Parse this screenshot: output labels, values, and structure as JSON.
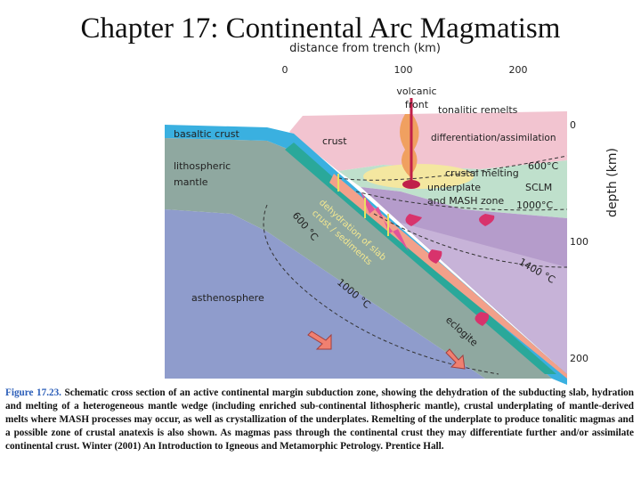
{
  "title": "Chapter 17: Continental Arc Magmatism",
  "axes": {
    "top": {
      "label": "distance from trench (km)",
      "ticks": [
        "0",
        "100",
        "200"
      ]
    },
    "right": {
      "label": "depth (km)",
      "ticks": [
        "0",
        "100",
        "200"
      ]
    }
  },
  "labels": {
    "volcanic_front": [
      "volcanic",
      "front"
    ],
    "tonalitic_remelts": "tonalitic remelts",
    "basaltic_crust": "basaltic crust",
    "crust": "crust",
    "differentiation": "differentiation/assimilation",
    "lithospheric_mantle": [
      "lithospheric",
      "mantle"
    ],
    "crustal_melting": "crustal melting",
    "t600_right": "600°C",
    "underplate": [
      "underplate",
      "and MASH zone"
    ],
    "sclm": "SCLM",
    "t1000_right": "1000°C",
    "dehydration": [
      "dehydration of slab",
      "crust / sediments"
    ],
    "t600_slab": "600 °C",
    "t1400": "1400 °C",
    "t1000_slab": "1000 °C",
    "asthenosphere": "asthenosphere",
    "eclogite": "eclogite"
  },
  "caption": {
    "figure": "Figure 17.23.",
    "text": "Schematic cross section of an active continental margin subduction zone, showing the dehydration of the subducting slab, hydration and melting of a heterogeneous mantle wedge (including enriched sub-continental lithospheric mantle), crustal underplating of mantle-derived melts where MASH processes may occur, as well as crystallization of the underplates. Remelting of the underplate to produce tonalitic magmas and a possible zone of crustal anatexis is also shown. As magmas pass through the continental crust they may differentiate further and/or assimilate continental crust.  Winter (2001) An Introduction to Igneous and Metamorphic Petrology. Prentice Hall."
  }
}
